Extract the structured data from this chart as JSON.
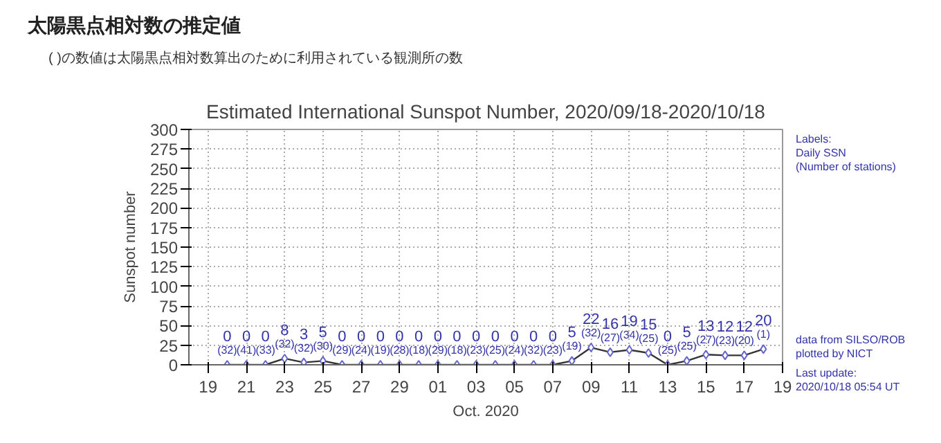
{
  "chart_data": {
    "type": "line",
    "title": "Estimated International Sunspot Number, 2020/09/18-2020/10/18",
    "ylabel": "Sunspot number",
    "xlabel": "Oct. 2020",
    "annotations": [
      "太陽黒点相対数の推定値",
      "( )の数値は太陽黒点相対数算出のために利用されている観測所の数",
      "Labels:",
      "Daily SSN",
      "(Number of stations)",
      "data from SILSO/ROB",
      "plotted by NICT",
      "Last update:",
      "2020/10/18 05:54 UT"
    ],
    "x": [
      "2020-09-20",
      "2020-09-21",
      "2020-09-22",
      "2020-09-23",
      "2020-09-24",
      "2020-09-25",
      "2020-09-26",
      "2020-09-27",
      "2020-09-28",
      "2020-09-29",
      "2020-09-30",
      "2020-10-01",
      "2020-10-02",
      "2020-10-03",
      "2020-10-04",
      "2020-10-05",
      "2020-10-06",
      "2020-10-07",
      "2020-10-08",
      "2020-10-09",
      "2020-10-10",
      "2020-10-11",
      "2020-10-12",
      "2020-10-13",
      "2020-10-14",
      "2020-10-15",
      "2020-10-16",
      "2020-10-17",
      "2020-10-18"
    ],
    "series": [
      {
        "color": "#333333",
        "values": [
          0,
          0,
          0,
          8,
          3,
          5,
          0,
          0,
          0,
          0,
          0,
          0,
          0,
          0,
          0,
          0,
          0,
          0,
          5,
          22,
          16,
          19,
          15,
          0,
          5,
          13,
          12,
          12,
          20
        ],
        "value_labels": [
          "0\n(32)",
          "0\n(41)",
          "0\n(33)",
          "8\n(32)",
          "3\n(32)",
          "5\n(30)",
          "0\n(29)",
          "0\n(24)",
          "0\n(19)",
          "0\n(28)",
          "0\n(18)",
          "0\n(29)",
          "0\n(18)",
          "0\n(23)",
          "0\n(25)",
          "0\n(24)",
          "0\n(32)",
          "0\n(23)",
          "5\n(19)",
          "22\n(32)",
          "16\n(27)",
          "19\n(34)",
          "15\n(25)",
          "0\n(25)",
          "5\n(25)",
          "13\n(27)",
          "12\n(23)",
          "12\n(20)",
          "20\n(1)"
        ]
      }
    ],
    "xlim": [
      "2020-09-18",
      "2020-10-19"
    ],
    "xticks": [
      {
        "value": "2020-09-19",
        "label": "19"
      },
      {
        "value": "2020-09-21",
        "label": "21"
      },
      {
        "value": "2020-09-23",
        "label": "23"
      },
      {
        "value": "2020-09-25",
        "label": "25"
      },
      {
        "value": "2020-09-27",
        "label": "27"
      },
      {
        "value": "2020-09-29",
        "label": "29"
      },
      {
        "value": "2020-10-01",
        "label": "01"
      },
      {
        "value": "2020-10-03",
        "label": "03"
      },
      {
        "value": "2020-10-05",
        "label": "05"
      },
      {
        "value": "2020-10-07",
        "label": "07"
      },
      {
        "value": "2020-10-09",
        "label": "09"
      },
      {
        "value": "2020-10-11",
        "label": "11"
      },
      {
        "value": "2020-10-13",
        "label": "13"
      },
      {
        "value": "2020-10-15",
        "label": "15"
      },
      {
        "value": "2020-10-17",
        "label": "17"
      },
      {
        "value": "2020-10-19",
        "label": "19"
      }
    ],
    "ylim": [
      0,
      300
    ],
    "yticks": [
      0,
      25,
      50,
      75,
      100,
      125,
      150,
      175,
      200,
      225,
      250,
      275,
      300
    ],
    "grid": true,
    "marker": "diamond",
    "line_style": "solid"
  }
}
